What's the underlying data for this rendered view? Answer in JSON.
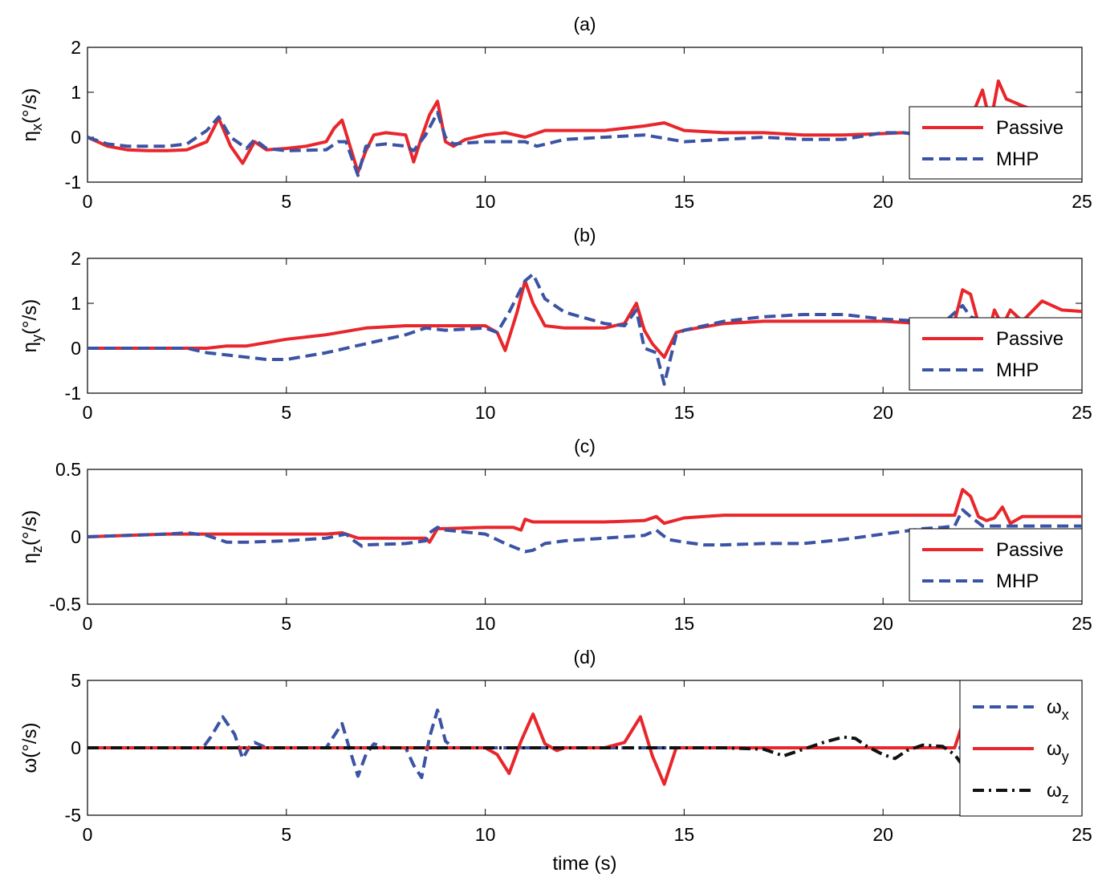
{
  "colors": {
    "red": "#e8262b",
    "blue": "#3b53a4",
    "black": "#111111"
  },
  "chart_data": [
    {
      "type": "line",
      "title": "(a)",
      "ylabel_main": "η",
      "ylabel_sub": "x",
      "ylabel_unit": "(°/s)",
      "xlabel": "",
      "xlim": [
        0,
        25
      ],
      "ylim": [
        -1,
        2
      ],
      "xticks": [
        "0",
        "5",
        "10",
        "15",
        "20",
        "25"
      ],
      "yticks": [
        "2",
        "1",
        "0",
        "-1"
      ],
      "ytick_values": [
        2,
        1,
        0,
        -1
      ],
      "legend": {
        "position": "right",
        "entries": [
          {
            "name": "Passive",
            "sub": ""
          },
          {
            "name": "MHP",
            "sub": ""
          }
        ]
      },
      "series": [
        {
          "name": "Passive",
          "color": "#e8262b",
          "style": "solid",
          "x": [
            0,
            0.5,
            1,
            1.5,
            2,
            2.5,
            3,
            3.3,
            3.6,
            3.9,
            4.2,
            4.5,
            5,
            5.5,
            6,
            6.2,
            6.4,
            6.6,
            6.8,
            7,
            7.2,
            7.5,
            8,
            8.2,
            8.4,
            8.6,
            8.8,
            9,
            9.2,
            9.5,
            10,
            10.5,
            11,
            11.5,
            12,
            13,
            14,
            14.5,
            15,
            16,
            17,
            18,
            19,
            20,
            20.5,
            21,
            21.5,
            22,
            22.2,
            22.5,
            22.7,
            22.9,
            23.1,
            23.5,
            23.8,
            24,
            24.2,
            24.5,
            24.8,
            25
          ],
          "y": [
            0,
            -0.2,
            -0.28,
            -0.3,
            -0.3,
            -0.28,
            -0.1,
            0.42,
            -0.2,
            -0.58,
            -0.1,
            -0.28,
            -0.25,
            -0.2,
            -0.1,
            0.2,
            0.38,
            -0.2,
            -0.78,
            -0.3,
            0.05,
            0.1,
            0.05,
            -0.55,
            0,
            0.5,
            0.8,
            -0.1,
            -0.2,
            -0.05,
            0.05,
            0.1,
            0,
            0.15,
            0.15,
            0.15,
            0.25,
            0.32,
            0.15,
            0.1,
            0.1,
            0.05,
            0.05,
            0.08,
            0.1,
            0.05,
            0.05,
            0.05,
            0.4,
            1.05,
            0.3,
            1.25,
            0.85,
            0.7,
            0.6,
            0.5,
            0.25,
            0.2,
            0.2,
            0.1
          ]
        },
        {
          "name": "MHP",
          "color": "#3b53a4",
          "style": "dashed",
          "x": [
            0,
            0.5,
            1,
            2,
            2.5,
            3,
            3.3,
            3.6,
            4,
            4.2,
            4.5,
            5,
            6,
            6.3,
            6.5,
            6.8,
            7,
            7.5,
            8,
            8.2,
            8.5,
            8.8,
            9,
            9.2,
            10,
            11,
            11.3,
            12,
            13,
            14,
            15,
            16,
            17,
            18,
            19,
            20,
            20.5,
            21,
            21.5,
            22,
            22.5,
            23,
            23.5,
            24,
            24.5,
            25
          ],
          "y": [
            0,
            -0.15,
            -0.2,
            -0.2,
            -0.15,
            0.15,
            0.45,
            0,
            -0.25,
            -0.05,
            -0.25,
            -0.3,
            -0.28,
            -0.1,
            -0.1,
            -0.85,
            -0.2,
            -0.15,
            -0.2,
            -0.3,
            0.05,
            0.55,
            0,
            -0.15,
            -0.1,
            -0.1,
            -0.2,
            -0.05,
            0,
            0.05,
            -0.1,
            -0.05,
            0,
            -0.05,
            -0.05,
            0.1,
            0.1,
            0.05,
            0.05,
            0.1,
            0.15,
            0.1,
            0.1,
            0.05,
            0.05,
            0
          ]
        }
      ]
    },
    {
      "type": "line",
      "title": "(b)",
      "ylabel_main": "η",
      "ylabel_sub": "y",
      "ylabel_unit": "(°/s)",
      "xlabel": "",
      "xlim": [
        0,
        25
      ],
      "ylim": [
        -1,
        2
      ],
      "xticks": [
        "0",
        "5",
        "10",
        "15",
        "20",
        "25"
      ],
      "yticks": [
        "2",
        "1",
        "0",
        "-1"
      ],
      "ytick_values": [
        2,
        1,
        0,
        -1
      ],
      "legend": {
        "position": "right",
        "entries": [
          {
            "name": "Passive",
            "sub": ""
          },
          {
            "name": "MHP",
            "sub": ""
          }
        ]
      },
      "series": [
        {
          "name": "Passive",
          "color": "#e8262b",
          "style": "solid",
          "x": [
            0,
            1,
            2,
            2.5,
            3,
            3.5,
            4,
            5,
            6,
            7,
            8,
            9,
            10,
            10.3,
            10.5,
            10.8,
            11,
            11.2,
            11.5,
            12,
            13,
            13.5,
            13.8,
            14,
            14.2,
            14.5,
            14.8,
            15,
            16,
            17,
            18,
            19,
            20,
            21,
            21.5,
            21.8,
            22,
            22.2,
            22.4,
            22.6,
            22.8,
            23,
            23.2,
            23.5,
            24,
            24.5,
            25
          ],
          "y": [
            0,
            0,
            0,
            0,
            0,
            0.05,
            0.05,
            0.2,
            0.3,
            0.45,
            0.5,
            0.5,
            0.5,
            0.35,
            -0.05,
            0.8,
            1.5,
            1.0,
            0.5,
            0.45,
            0.45,
            0.55,
            1.0,
            0.4,
            0.1,
            -0.2,
            0.35,
            0.4,
            0.55,
            0.6,
            0.6,
            0.6,
            0.6,
            0.55,
            0.5,
            0.6,
            1.3,
            1.2,
            0.55,
            0.2,
            0.85,
            0.5,
            0.85,
            0.6,
            1.05,
            0.85,
            0.82
          ]
        },
        {
          "name": "MHP",
          "color": "#3b53a4",
          "style": "dashed",
          "x": [
            0,
            1,
            2,
            2.5,
            3,
            3.5,
            4,
            4.5,
            5,
            6,
            7,
            8,
            8.5,
            9,
            10,
            10.3,
            10.6,
            11,
            11.2,
            11.5,
            12,
            13,
            13.5,
            13.8,
            14,
            14.3,
            14.5,
            14.8,
            15,
            16,
            17,
            18,
            19,
            20,
            21,
            21.5,
            22,
            22.2,
            22.5,
            23,
            23.5,
            24,
            25
          ],
          "y": [
            0,
            0,
            0,
            0,
            -0.1,
            -0.15,
            -0.2,
            -0.25,
            -0.25,
            -0.1,
            0.1,
            0.3,
            0.45,
            0.4,
            0.45,
            0.35,
            0.8,
            1.5,
            1.65,
            1.1,
            0.8,
            0.55,
            0.5,
            0.85,
            0,
            -0.1,
            -0.8,
            0.3,
            0.4,
            0.6,
            0.7,
            0.75,
            0.75,
            0.65,
            0.6,
            0.55,
            0.95,
            0.7,
            0.6,
            0.6,
            0.6,
            0.6,
            0.6
          ]
        }
      ]
    },
    {
      "type": "line",
      "title": "(c)",
      "ylabel_main": "η",
      "ylabel_sub": "z",
      "ylabel_unit": "(°/s)",
      "xlabel": "",
      "xlim": [
        0,
        25
      ],
      "ylim": [
        -0.5,
        0.5
      ],
      "xticks": [
        "0",
        "5",
        "10",
        "15",
        "20",
        "25"
      ],
      "yticks": [
        "0.5",
        "0",
        "-0.5"
      ],
      "ytick_values": [
        0.5,
        0,
        -0.5
      ],
      "legend": {
        "position": "right",
        "entries": [
          {
            "name": "Passive",
            "sub": ""
          },
          {
            "name": "MHP",
            "sub": ""
          }
        ]
      },
      "series": [
        {
          "name": "Passive",
          "color": "#e8262b",
          "style": "solid",
          "x": [
            0,
            1,
            2,
            3,
            4,
            5,
            6,
            6.4,
            6.6,
            6.8,
            7,
            8,
            8.5,
            8.6,
            8.8,
            9,
            10,
            10.7,
            10.9,
            11,
            11.2,
            12,
            13,
            14,
            14.3,
            14.5,
            15,
            16,
            17,
            18,
            19,
            20,
            21,
            21.8,
            22,
            22.2,
            22.4,
            22.6,
            22.8,
            23,
            23.2,
            23.5,
            24,
            25
          ],
          "y": [
            0,
            0.01,
            0.02,
            0.02,
            0.02,
            0.02,
            0.02,
            0.03,
            0.01,
            -0.01,
            -0.01,
            -0.01,
            -0.01,
            -0.04,
            0.06,
            0.06,
            0.07,
            0.07,
            0.05,
            0.13,
            0.11,
            0.11,
            0.11,
            0.12,
            0.15,
            0.1,
            0.14,
            0.16,
            0.16,
            0.16,
            0.16,
            0.16,
            0.16,
            0.16,
            0.35,
            0.3,
            0.15,
            0.12,
            0.14,
            0.22,
            0.1,
            0.15,
            0.15,
            0.15
          ]
        },
        {
          "name": "MHP",
          "color": "#3b53a4",
          "style": "dashed",
          "x": [
            0,
            1,
            2,
            2.5,
            3,
            3.5,
            4,
            5,
            6,
            6.5,
            6.7,
            6.9,
            7,
            8,
            8.5,
            8.6,
            8.8,
            9,
            10,
            10.5,
            11,
            11.2,
            11.5,
            12,
            13,
            14,
            14.3,
            14.6,
            15,
            15.5,
            16,
            17,
            18,
            19,
            20,
            20.5,
            21,
            21.5,
            21.8,
            22,
            22.2,
            22.5,
            23,
            23.5,
            24,
            25
          ],
          "y": [
            0,
            0.01,
            0.02,
            0.03,
            0.01,
            -0.04,
            -0.04,
            -0.03,
            -0.01,
            0.02,
            -0.03,
            -0.07,
            -0.06,
            -0.05,
            -0.03,
            0.03,
            0.07,
            0.05,
            0.02,
            -0.05,
            -0.11,
            -0.1,
            -0.05,
            -0.03,
            -0.01,
            0.01,
            0.05,
            -0.02,
            -0.04,
            -0.06,
            -0.06,
            -0.05,
            -0.05,
            -0.02,
            0.02,
            0.04,
            0.06,
            0.07,
            0.08,
            0.2,
            0.15,
            0.08,
            0.08,
            0.08,
            0.08,
            0.08
          ]
        }
      ]
    },
    {
      "type": "line",
      "title": "(d)",
      "ylabel_main": "ω",
      "ylabel_sub": "",
      "ylabel_unit": "(°/s)",
      "xlabel": "time (s)",
      "xlim": [
        0,
        25
      ],
      "ylim": [
        -5,
        5
      ],
      "xticks": [
        "0",
        "5",
        "10",
        "15",
        "20",
        "25"
      ],
      "yticks": [
        "5",
        "0",
        "-5"
      ],
      "ytick_values": [
        5,
        0,
        -5
      ],
      "legend": {
        "position": "right",
        "entries": [
          {
            "name": "ω",
            "sub": "x"
          },
          {
            "name": "ω",
            "sub": "y"
          },
          {
            "name": "ω",
            "sub": "z"
          }
        ]
      },
      "series": [
        {
          "name": "ωx",
          "color": "#3b53a4",
          "style": "dashed",
          "x": [
            0,
            1,
            2,
            2.5,
            2.9,
            3.1,
            3.4,
            3.7,
            3.9,
            4.1,
            4.2,
            4.5,
            5,
            5.5,
            6,
            6.2,
            6.4,
            6.6,
            6.8,
            7,
            7.2,
            7.5,
            8,
            8.2,
            8.4,
            8.6,
            8.8,
            9,
            9.2,
            10,
            11,
            12,
            13,
            14,
            15,
            16,
            17,
            18,
            19,
            20,
            21,
            22,
            23,
            24,
            25
          ],
          "y": [
            0,
            0,
            0,
            0,
            0,
            0.8,
            2.3,
            1.0,
            -0.8,
            0.2,
            0.4,
            0,
            0,
            0,
            0,
            0.9,
            1.8,
            -0.2,
            -2.1,
            -0.5,
            0.3,
            0,
            0,
            -1.3,
            -2.2,
            0.8,
            2.8,
            0.5,
            0,
            0,
            0,
            0,
            0,
            0,
            0,
            0,
            0,
            0,
            0,
            0,
            0,
            0,
            0,
            0,
            0
          ]
        },
        {
          "name": "ωy",
          "color": "#e8262b",
          "style": "solid",
          "x": [
            0,
            1,
            2,
            3,
            4,
            5,
            6,
            7,
            8,
            9,
            10,
            10.3,
            10.6,
            10.9,
            11.2,
            11.5,
            11.8,
            12,
            13,
            13.5,
            13.9,
            14.2,
            14.5,
            14.8,
            15,
            16,
            17,
            18,
            19,
            20,
            21,
            21.8,
            22,
            22.2,
            23,
            24,
            25
          ],
          "y": [
            0,
            0,
            0,
            0,
            0,
            0,
            0,
            0,
            0,
            0,
            0,
            -0.5,
            -1.9,
            0.5,
            2.5,
            0.3,
            -0.2,
            0,
            0,
            0.4,
            2.3,
            -0.6,
            -2.7,
            0,
            0,
            0,
            0,
            0,
            0,
            0,
            0,
            0,
            1.8,
            0,
            0,
            0,
            0
          ]
        },
        {
          "name": "ωz",
          "color": "#111111",
          "style": "dashdot",
          "x": [
            0,
            2,
            4,
            6,
            8,
            10,
            12,
            14,
            15,
            16,
            17,
            17.5,
            18,
            18.5,
            19,
            19.3,
            19.6,
            20,
            20.3,
            20.6,
            21,
            21.5,
            21.8,
            22,
            23,
            24,
            25
          ],
          "y": [
            0,
            0,
            0,
            0,
            0,
            0,
            0,
            0,
            0,
            0,
            -0.1,
            -0.6,
            -0.1,
            0.4,
            0.8,
            0.7,
            0.1,
            -0.5,
            -0.8,
            -0.2,
            0.2,
            0.1,
            -0.5,
            -1.3,
            0,
            0,
            0
          ]
        }
      ]
    }
  ]
}
